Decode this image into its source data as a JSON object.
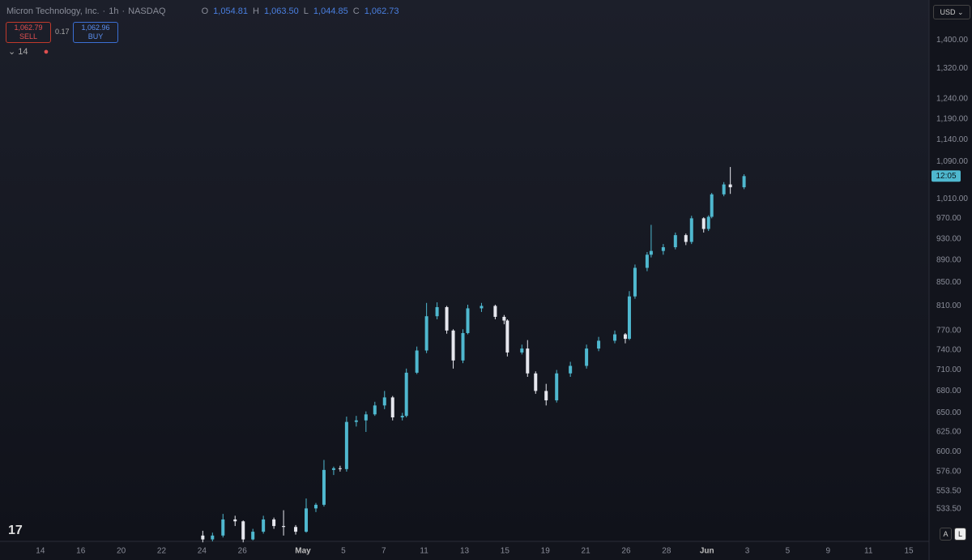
{
  "header": {
    "symbol": "Micron Technology, Inc.",
    "separator1": "·",
    "interval": "1h",
    "separator2": "·",
    "exchange": "NASDAQ",
    "ohlc": [
      {
        "key": "O",
        "value": "1,054.81"
      },
      {
        "key": "H",
        "value": "1,063.50"
      },
      {
        "key": "L",
        "value": "1,044.85"
      },
      {
        "key": "C",
        "value": "1,062.73"
      }
    ],
    "sell_price": "1,062.79",
    "sell_label": "SELL",
    "spread": "0.17",
    "buy_price": "1,062.96",
    "buy_label": "BUY",
    "indicator": "14"
  },
  "toolbar": {
    "currency": "USD",
    "auto": "A",
    "log": "L"
  },
  "chart_data": {
    "type": "candlestick",
    "log_scale": true,
    "grid": false,
    "up_color": "#4fb8cf",
    "down_color": "#e6e7ee",
    "last_price_label": "12:05",
    "xlim": [
      -2,
      44
    ],
    "xticks": [
      {
        "value": 0,
        "label": "14"
      },
      {
        "value": 2,
        "label": "16"
      },
      {
        "value": 4,
        "label": "20"
      },
      {
        "value": 6,
        "label": "22"
      },
      {
        "value": 8,
        "label": "24"
      },
      {
        "value": 10,
        "label": "26"
      },
      {
        "value": 13,
        "label": "May"
      },
      {
        "value": 15,
        "label": "5"
      },
      {
        "value": 17,
        "label": "7"
      },
      {
        "value": 19,
        "label": "11"
      },
      {
        "value": 21,
        "label": "13"
      },
      {
        "value": 23,
        "label": "15"
      },
      {
        "value": 25,
        "label": "19"
      },
      {
        "value": 27,
        "label": "21"
      },
      {
        "value": 29,
        "label": "26"
      },
      {
        "value": 31,
        "label": "28"
      },
      {
        "value": 33,
        "label": "Jun"
      },
      {
        "value": 35,
        "label": "3"
      },
      {
        "value": 37,
        "label": "5"
      },
      {
        "value": 39,
        "label": "9"
      },
      {
        "value": 41,
        "label": "11"
      },
      {
        "value": 43,
        "label": "15"
      }
    ],
    "ylim": [
      499,
      1520
    ],
    "yticks": [
      {
        "value": 1400,
        "label": "1,400.00"
      },
      {
        "value": 1320,
        "label": "1,320.00"
      },
      {
        "value": 1240,
        "label": "1,240.00"
      },
      {
        "value": 1190,
        "label": "1,190.00"
      },
      {
        "value": 1140,
        "label": "1,140.00"
      },
      {
        "value": 1090,
        "label": "1,090.00"
      },
      {
        "value": 1010,
        "label": "1,010.00"
      },
      {
        "value": 970,
        "label": "970.00"
      },
      {
        "value": 930,
        "label": "930.00"
      },
      {
        "value": 890,
        "label": "890.00"
      },
      {
        "value": 850,
        "label": "850.00"
      },
      {
        "value": 810,
        "label": "810.00"
      },
      {
        "value": 770,
        "label": "770.00"
      },
      {
        "value": 740,
        "label": "740.00"
      },
      {
        "value": 710,
        "label": "710.00"
      },
      {
        "value": 680,
        "label": "680.00"
      },
      {
        "value": 650,
        "label": "650.00"
      },
      {
        "value": 625,
        "label": "625.00"
      },
      {
        "value": 600,
        "label": "600.00"
      },
      {
        "value": 576,
        "label": "576.00"
      },
      {
        "value": 553.5,
        "label": "553.50"
      },
      {
        "value": 533.5,
        "label": "533.50"
      }
    ],
    "x": [
      8.04,
      8.52,
      9.04,
      9.64,
      10.04,
      10.52,
      11.04,
      11.56,
      12.04,
      12.64,
      13.16,
      13.64,
      14.04,
      14.52,
      14.84,
      15.16,
      15.64,
      16.12,
      16.56,
      17.04,
      17.44,
      17.92,
      18.12,
      18.64,
      19.12,
      19.64,
      20.12,
      20.44,
      20.92,
      21.16,
      21.84,
      22.52,
      22.96,
      23.12,
      23.84,
      24.12,
      24.52,
      25.04,
      25.56,
      26.24,
      27.04,
      27.64,
      28.44,
      28.96,
      29.16,
      29.44,
      30.04,
      30.24,
      30.84,
      31.44,
      31.96,
      32.24,
      32.84,
      33.08,
      33.24,
      33.84,
      34.16,
      34.84
    ],
    "open": [
      505,
      501,
      505,
      522,
      520,
      501,
      509,
      522,
      515,
      514,
      509,
      534,
      538,
      578,
      580,
      579,
      638,
      640,
      648,
      660,
      671,
      644,
      646,
      706,
      739,
      793,
      808,
      770,
      724,
      766,
      806,
      810,
      792,
      786,
      736,
      742,
      705,
      680,
      667,
      705,
      716,
      742,
      754,
      764,
      757,
      826,
      876,
      900,
      907,
      914,
      937,
      924,
      970,
      949,
      973,
      1019,
      1040,
      1034
    ],
    "high": [
      510,
      508,
      528,
      526,
      521,
      512,
      526,
      524,
      532,
      516,
      545,
      540,
      590,
      582,
      583,
      645,
      646,
      652,
      665,
      680,
      673,
      650,
      712,
      745,
      815,
      816,
      810,
      772,
      772,
      812,
      815,
      812,
      795,
      788,
      748,
      755,
      708,
      690,
      710,
      722,
      748,
      760,
      770,
      766,
      835,
      882,
      905,
      957,
      920,
      942,
      940,
      975,
      972,
      976,
      1022,
      1045,
      1078,
      1062
    ],
    "low": [
      498,
      499,
      503,
      515,
      498,
      500,
      507,
      512,
      505,
      506,
      508,
      530,
      536,
      572,
      576,
      576,
      632,
      625,
      646,
      655,
      640,
      640,
      644,
      704,
      735,
      788,
      765,
      712,
      720,
      764,
      800,
      788,
      780,
      730,
      733,
      700,
      676,
      660,
      664,
      700,
      712,
      738,
      750,
      750,
      755,
      822,
      870,
      895,
      900,
      910,
      918,
      920,
      942,
      945,
      970,
      1015,
      1020,
      1030
    ],
    "close": [
      501,
      505,
      522,
      520,
      501,
      509,
      522,
      515,
      514,
      509,
      534,
      538,
      578,
      580,
      579,
      638,
      640,
      648,
      660,
      671,
      644,
      646,
      706,
      739,
      793,
      808,
      770,
      724,
      766,
      806,
      810,
      792,
      786,
      736,
      742,
      705,
      680,
      667,
      705,
      716,
      742,
      754,
      764,
      757,
      826,
      876,
      900,
      907,
      914,
      937,
      924,
      970,
      949,
      973,
      1019,
      1040,
      1034,
      1058
    ]
  }
}
